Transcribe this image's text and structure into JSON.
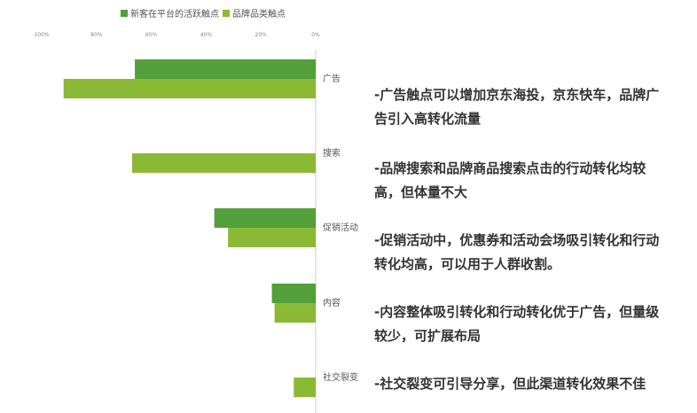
{
  "chart_data": {
    "type": "bar",
    "orientation": "horizontal-reversed",
    "categories": [
      "广告",
      "搜索",
      "促销活动",
      "内容",
      "社交裂变"
    ],
    "series": [
      {
        "name": "新客在平台的活跃触点",
        "color": "#539f3a",
        "values": [
          66,
          0,
          37,
          16,
          0
        ]
      },
      {
        "name": "品牌品类触点",
        "color": "#8cb935",
        "values": [
          92,
          67,
          32,
          15,
          8
        ]
      }
    ],
    "xlim": [
      100,
      0
    ],
    "xticks": [
      "100%",
      "80%",
      "60%",
      "40%",
      "20%",
      "0%"
    ],
    "legend_position": "top",
    "grid": false
  },
  "annotations": [
    "-广告触点可以增加京东海投，京东快车，品牌广告引入高转化流量",
    "-品牌搜索和品牌商品搜索点击的行动转化均较高，但体量不大",
    "-促销活动中，优惠券和活动会场吸引转化和行动转化均高，可以用于人群收割。",
    "-内容整体吸引转化和行动转化优于广告，但量级较少，可扩展布局",
    "-社交裂变可引导分享，但此渠道转化效果不佳"
  ]
}
